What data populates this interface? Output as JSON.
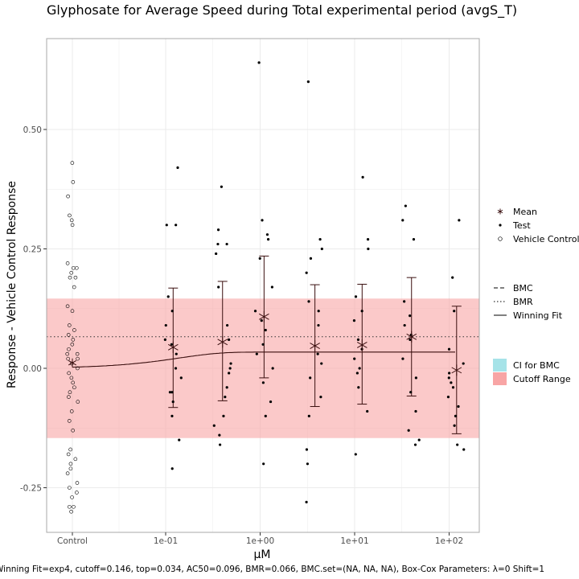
{
  "chart_data": {
    "type": "scatter",
    "title": "Glyphosate for Average Speed during Total experimental period (avgS_T)",
    "xlabel": "µM",
    "ylabel": "Response - Vehicle Control Response",
    "caption": "Winning Fit=exp4, cutoff=0.146, top=0.034, AC50=0.096, BMR=0.066, BMC.set=(NA, NA, NA), Box-Cox Parameters: λ=0 Shift=1",
    "x_scale": "log10",
    "x_ticks": [
      {
        "label": "Control"
      },
      {
        "label": "1e-01",
        "value": 0.1
      },
      {
        "label": "1e+00",
        "value": 1
      },
      {
        "label": "1e+01",
        "value": 10
      },
      {
        "label": "1e+02",
        "value": 100
      }
    ],
    "y_ticks": [
      -0.25,
      0.0,
      0.25,
      0.5
    ],
    "y_tick_labels": [
      "-0.25",
      "0.00",
      "0.25",
      "0.50"
    ],
    "ylim": [
      -0.34,
      0.67
    ],
    "grid": true,
    "cutoff": 0.146,
    "bmr": 0.066,
    "fit": {
      "model": "exp4",
      "top": 0.034,
      "ac50": 0.096
    },
    "vehicle_control": [
      0.43,
      0.39,
      0.36,
      0.32,
      0.31,
      0.3,
      0.22,
      0.21,
      0.21,
      0.2,
      0.19,
      0.19,
      0.17,
      0.13,
      0.12,
      0.09,
      0.08,
      0.07,
      0.06,
      0.05,
      0.04,
      0.03,
      0.03,
      0.02,
      0.02,
      0.01,
      0.0,
      -0.01,
      -0.02,
      -0.03,
      -0.04,
      -0.05,
      -0.06,
      -0.07,
      -0.09,
      -0.11,
      -0.13,
      -0.17,
      -0.18,
      -0.19,
      -0.2,
      -0.21,
      -0.22,
      -0.24,
      -0.25,
      -0.26,
      -0.27,
      -0.29,
      -0.29,
      -0.3
    ],
    "concentrations": [
      {
        "conc": 0.12,
        "mean": 0.044,
        "err_low": -0.082,
        "err_high": 0.168,
        "test": [
          0.42,
          0.3,
          0.3,
          0.15,
          0.12,
          0.09,
          0.06,
          0.05,
          0.03,
          0.0,
          -0.02,
          -0.05,
          -0.05,
          -0.07,
          -0.1,
          -0.15,
          -0.21
        ]
      },
      {
        "conc": 0.4,
        "mean": 0.055,
        "err_low": -0.068,
        "err_high": 0.182,
        "test": [
          0.38,
          0.29,
          0.26,
          0.26,
          0.24,
          0.17,
          0.09,
          0.06,
          0.01,
          0.0,
          -0.01,
          -0.04,
          -0.06,
          -0.1,
          -0.12,
          -0.14,
          -0.16
        ]
      },
      {
        "conc": 1.1,
        "mean": 0.108,
        "err_low": -0.02,
        "err_high": 0.235,
        "test": [
          0.64,
          0.31,
          0.28,
          0.27,
          0.23,
          0.17,
          0.12,
          0.1,
          0.08,
          0.05,
          0.03,
          0.0,
          -0.03,
          -0.07,
          -0.1,
          -0.2
        ]
      },
      {
        "conc": 3.8,
        "mean": 0.047,
        "err_low": -0.08,
        "err_high": 0.175,
        "test": [
          0.6,
          0.27,
          0.25,
          0.23,
          0.2,
          0.14,
          0.12,
          0.09,
          0.03,
          0.01,
          -0.02,
          -0.06,
          -0.1,
          -0.17,
          -0.2,
          -0.28
        ]
      },
      {
        "conc": 12,
        "mean": 0.049,
        "err_low": -0.075,
        "err_high": 0.176,
        "test": [
          0.4,
          0.27,
          0.25,
          0.15,
          0.12,
          0.1,
          0.06,
          0.04,
          0.02,
          0.0,
          -0.01,
          -0.04,
          -0.09,
          -0.18
        ]
      },
      {
        "conc": 40,
        "mean": 0.066,
        "err_low": -0.058,
        "err_high": 0.19,
        "test": [
          0.34,
          0.31,
          0.27,
          0.14,
          0.11,
          0.09,
          0.07,
          0.06,
          0.02,
          -0.02,
          -0.05,
          -0.09,
          -0.13,
          -0.15,
          -0.16
        ]
      },
      {
        "conc": 120,
        "mean": -0.004,
        "err_low": -0.137,
        "err_high": 0.13,
        "test": [
          0.31,
          0.19,
          0.12,
          0.04,
          0.01,
          -0.01,
          -0.02,
          -0.03,
          -0.04,
          -0.06,
          -0.08,
          -0.1,
          -0.12,
          -0.16,
          -0.17
        ]
      }
    ],
    "legend": {
      "points": [
        "Mean",
        "Test",
        "Vehicle Control"
      ],
      "lines": [
        "BMC",
        "BMR",
        "Winning Fit"
      ],
      "fills": [
        "CI for BMC",
        "Cutoff Range"
      ],
      "placement": "right"
    },
    "colors": {
      "cutoff_fill": "#f8a5a5",
      "ci_fill": "#a6e3e8",
      "fit_line": "#3a0f0f",
      "panel_border": "#a8a8a8",
      "grid": "#ebebeb"
    }
  }
}
